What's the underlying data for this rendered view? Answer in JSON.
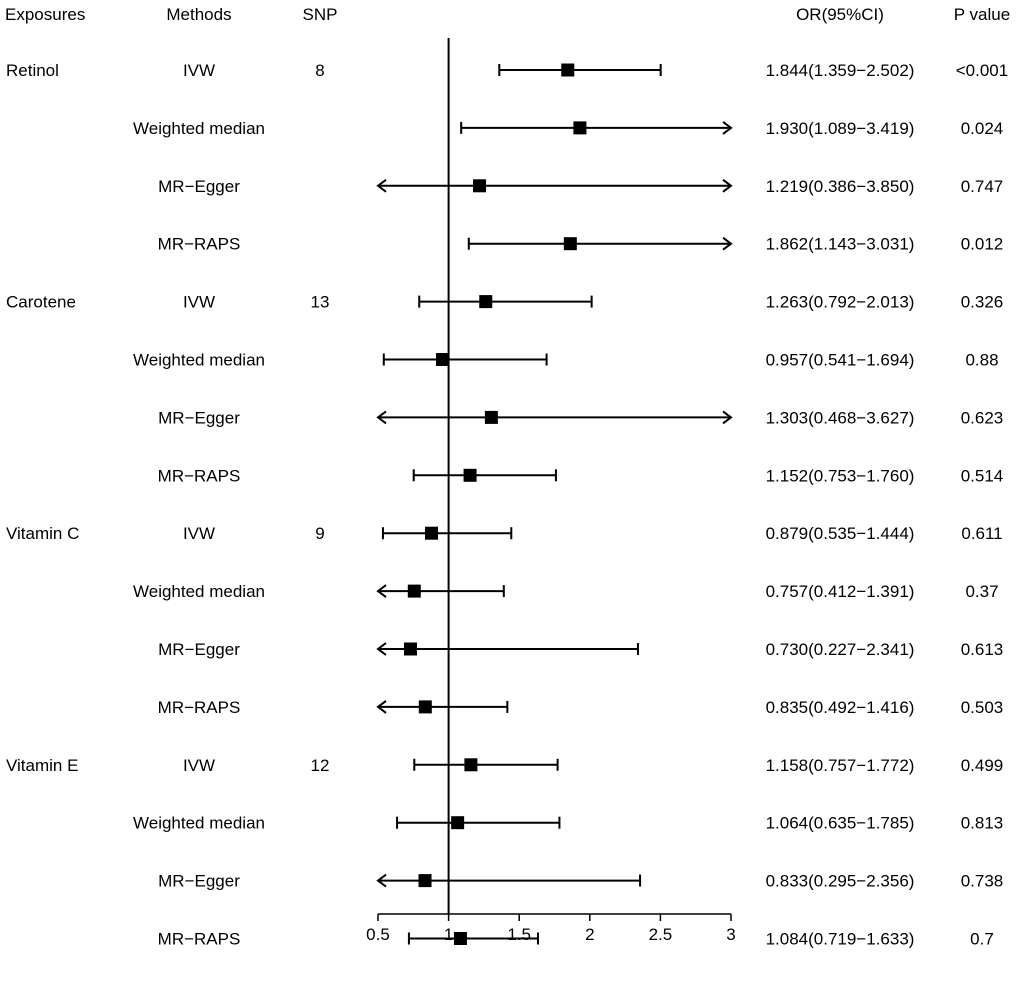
{
  "chart_data": {
    "type": "forest",
    "headers": {
      "exposures": "Exposures",
      "methods": "Methods",
      "snp": "SNP",
      "or_ci": "OR(95%CI)",
      "p_value": "P value"
    },
    "x_ticks": [
      "0.5",
      "1",
      "1.5",
      "2",
      "2.5",
      "3"
    ],
    "xlim": [
      0.5,
      3
    ],
    "reference_line": 1,
    "rows": [
      {
        "exposure": "Retinol",
        "method": "IVW",
        "snp": "8",
        "or": 1.844,
        "lo": 1.359,
        "hi": 2.502,
        "or_ci_text": "1.844(1.359−2.502)",
        "p": "<0.001"
      },
      {
        "exposure": "",
        "method": "Weighted median",
        "snp": "",
        "or": 1.93,
        "lo": 1.089,
        "hi": 3.419,
        "or_ci_text": "1.930(1.089−3.419)",
        "p": "0.024"
      },
      {
        "exposure": "",
        "method": "MR−Egger",
        "snp": "",
        "or": 1.219,
        "lo": 0.386,
        "hi": 3.85,
        "or_ci_text": "1.219(0.386−3.850)",
        "p": "0.747"
      },
      {
        "exposure": "",
        "method": "MR−RAPS",
        "snp": "",
        "or": 1.862,
        "lo": 1.143,
        "hi": 3.031,
        "or_ci_text": "1.862(1.143−3.031)",
        "p": "0.012"
      },
      {
        "exposure": "Carotene",
        "method": "IVW",
        "snp": "13",
        "or": 1.263,
        "lo": 0.792,
        "hi": 2.013,
        "or_ci_text": "1.263(0.792−2.013)",
        "p": "0.326"
      },
      {
        "exposure": "",
        "method": "Weighted median",
        "snp": "",
        "or": 0.957,
        "lo": 0.541,
        "hi": 1.694,
        "or_ci_text": "0.957(0.541−1.694)",
        "p": "0.88"
      },
      {
        "exposure": "",
        "method": "MR−Egger",
        "snp": "",
        "or": 1.303,
        "lo": 0.468,
        "hi": 3.627,
        "or_ci_text": "1.303(0.468−3.627)",
        "p": "0.623"
      },
      {
        "exposure": "",
        "method": "MR−RAPS",
        "snp": "",
        "or": 1.152,
        "lo": 0.753,
        "hi": 1.76,
        "or_ci_text": "1.152(0.753−1.760)",
        "p": "0.514"
      },
      {
        "exposure": "Vitamin C",
        "method": "IVW",
        "snp": "9",
        "or": 0.879,
        "lo": 0.535,
        "hi": 1.444,
        "or_ci_text": "0.879(0.535−1.444)",
        "p": "0.611"
      },
      {
        "exposure": "",
        "method": "Weighted median",
        "snp": "",
        "or": 0.757,
        "lo": 0.412,
        "hi": 1.391,
        "or_ci_text": "0.757(0.412−1.391)",
        "p": "0.37"
      },
      {
        "exposure": "",
        "method": "MR−Egger",
        "snp": "",
        "or": 0.73,
        "lo": 0.227,
        "hi": 2.341,
        "or_ci_text": "0.730(0.227−2.341)",
        "p": "0.613"
      },
      {
        "exposure": "",
        "method": "MR−RAPS",
        "snp": "",
        "or": 0.835,
        "lo": 0.492,
        "hi": 1.416,
        "or_ci_text": "0.835(0.492−1.416)",
        "p": "0.503"
      },
      {
        "exposure": "Vitamin E",
        "method": "IVW",
        "snp": "12",
        "or": 1.158,
        "lo": 0.757,
        "hi": 1.772,
        "or_ci_text": "1.158(0.757−1.772)",
        "p": "0.499"
      },
      {
        "exposure": "",
        "method": "Weighted median",
        "snp": "",
        "or": 1.064,
        "lo": 0.635,
        "hi": 1.785,
        "or_ci_text": "1.064(0.635−1.785)",
        "p": "0.813"
      },
      {
        "exposure": "",
        "method": "MR−Egger",
        "snp": "",
        "or": 0.833,
        "lo": 0.295,
        "hi": 2.356,
        "or_ci_text": "0.833(0.295−2.356)",
        "p": "0.738"
      },
      {
        "exposure": "",
        "method": "MR−RAPS",
        "snp": "",
        "or": 1.084,
        "lo": 0.719,
        "hi": 1.633,
        "or_ci_text": "1.084(0.719−1.633)",
        "p": "0.7"
      }
    ]
  },
  "colors": {
    "ink": "#000000",
    "background": "#ffffff"
  }
}
